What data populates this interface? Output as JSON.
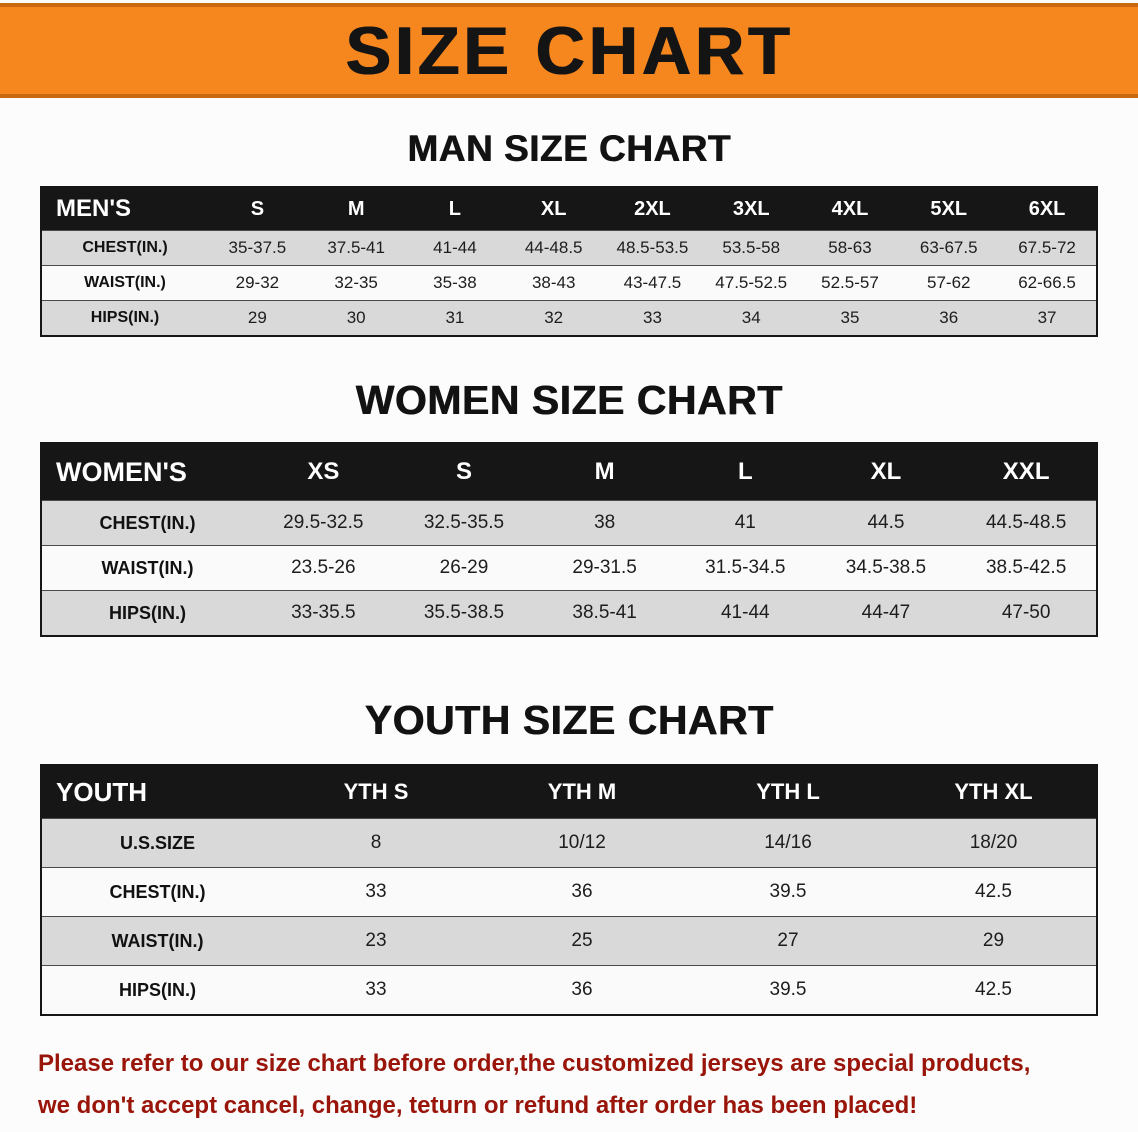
{
  "banner": {
    "title": "SIZE CHART"
  },
  "tables": {
    "men": {
      "heading": "MAN SIZE CHART",
      "header": [
        "MEN'S",
        "S",
        "M",
        "L",
        "XL",
        "2XL",
        "3XL",
        "4XL",
        "5XL",
        "6XL"
      ],
      "rows": [
        {
          "label": "CHEST(IN.)",
          "values": [
            "35-37.5",
            "37.5-41",
            "41-44",
            "44-48.5",
            "48.5-53.5",
            "53.5-58",
            "58-63",
            "63-67.5",
            "67.5-72"
          ]
        },
        {
          "label": "WAIST(IN.)",
          "values": [
            "29-32",
            "32-35",
            "35-38",
            "38-43",
            "43-47.5",
            "47.5-52.5",
            "52.5-57",
            "57-62",
            "62-66.5"
          ]
        },
        {
          "label": "HIPS(IN.)",
          "values": [
            "29",
            "30",
            "31",
            "32",
            "33",
            "34",
            "35",
            "36",
            "37"
          ]
        }
      ]
    },
    "women": {
      "heading": "WOMEN SIZE CHART",
      "header": [
        "WOMEN'S",
        "XS",
        "S",
        "M",
        "L",
        "XL",
        "XXL"
      ],
      "rows": [
        {
          "label": "CHEST(IN.)",
          "values": [
            "29.5-32.5",
            "32.5-35.5",
            "38",
            "41",
            "44.5",
            "44.5-48.5"
          ]
        },
        {
          "label": "WAIST(IN.)",
          "values": [
            "23.5-26",
            "26-29",
            "29-31.5",
            "31.5-34.5",
            "34.5-38.5",
            "38.5-42.5"
          ]
        },
        {
          "label": "HIPS(IN.)",
          "values": [
            "33-35.5",
            "35.5-38.5",
            "38.5-41",
            "41-44",
            "44-47",
            "47-50"
          ]
        }
      ]
    },
    "youth": {
      "heading": "YOUTH SIZE CHART",
      "header": [
        "YOUTH",
        "YTH S",
        "YTH M",
        "YTH L",
        "YTH XL"
      ],
      "rows": [
        {
          "label": "U.S.SIZE",
          "values": [
            "8",
            "10/12",
            "14/16",
            "18/20"
          ]
        },
        {
          "label": "CHEST(IN.)",
          "values": [
            "33",
            "36",
            "39.5",
            "42.5"
          ]
        },
        {
          "label": "WAIST(IN.)",
          "values": [
            "23",
            "25",
            "27",
            "29"
          ]
        },
        {
          "label": "HIPS(IN.)",
          "values": [
            "33",
            "36",
            "39.5",
            "42.5"
          ]
        }
      ]
    }
  },
  "footer": {
    "line1": "Please refer to our size chart before order,the customized jerseys are special products,",
    "line2": "we don't accept cancel, change, teturn or refund after order has been placed!"
  },
  "colors": {
    "accent_orange": "#f6871f",
    "header_black": "#161616",
    "row_gray": "#d9d9d9",
    "warning_red": "#991409"
  }
}
